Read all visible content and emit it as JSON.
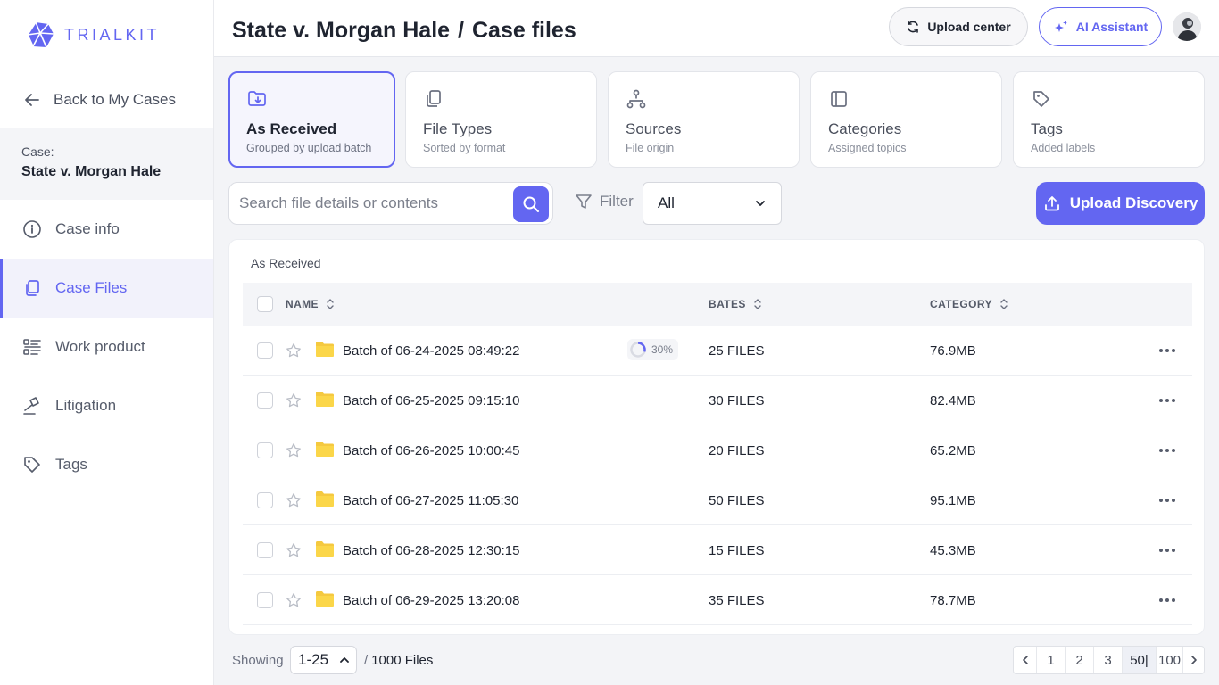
{
  "brand": {
    "name": "TRIALKIT",
    "accent": "#6366f1"
  },
  "sidebar": {
    "back_label": "Back to My Cases",
    "case_label": "Case:",
    "case_name": "State v. Morgan Hale",
    "items": [
      {
        "label": "Case info",
        "icon": "info-icon"
      },
      {
        "label": "Case Files",
        "icon": "files-icon",
        "active": true
      },
      {
        "label": "Work product",
        "icon": "list-icon"
      },
      {
        "label": "Litigation",
        "icon": "gavel-icon"
      },
      {
        "label": "Tags",
        "icon": "tag-icon"
      }
    ]
  },
  "header": {
    "case_title": "State v. Morgan Hale",
    "separator": "/",
    "page_title": "Case files",
    "upload_center_label": "Upload center",
    "ai_label": "AI Assistant"
  },
  "views": [
    {
      "title": "As Received",
      "subtitle": "Grouped by upload batch",
      "icon": "folder-download-icon",
      "active": true
    },
    {
      "title": "File Types",
      "subtitle": "Sorted by format",
      "icon": "copy-icon"
    },
    {
      "title": "Sources",
      "subtitle": "File origin",
      "icon": "sitemap-icon"
    },
    {
      "title": "Categories",
      "subtitle": "Assigned topics",
      "icon": "panel-icon"
    },
    {
      "title": "Tags",
      "subtitle": "Added labels",
      "icon": "tag-icon"
    }
  ],
  "toolbar": {
    "search_placeholder": "Search file details or contents",
    "filter_label": "Filter",
    "filter_value": "All",
    "upload_label": "Upload Discovery"
  },
  "table": {
    "title": "As Received",
    "columns": {
      "name": "NAME",
      "bates": "BATES",
      "category": "CATEGORY"
    },
    "rows": [
      {
        "name": "Batch of 06-24-2025 08:49:22",
        "bates": "25 FILES",
        "category": "76.9MB",
        "progress": "30%"
      },
      {
        "name": "Batch of 06-25-2025 09:15:10",
        "bates": "30 FILES",
        "category": "82.4MB"
      },
      {
        "name": "Batch of 06-26-2025 10:00:45",
        "bates": "20 FILES",
        "category": "65.2MB"
      },
      {
        "name": "Batch of 06-27-2025 11:05:30",
        "bates": "50 FILES",
        "category": "95.1MB"
      },
      {
        "name": "Batch of 06-28-2025 12:30:15",
        "bates": "15 FILES",
        "category": "45.3MB"
      },
      {
        "name": "Batch of 06-29-2025 13:20:08",
        "bates": "35 FILES",
        "category": "78.7MB"
      }
    ]
  },
  "footer": {
    "showing_label": "Showing",
    "range": "1-25",
    "slash": "/",
    "total": "1000 Files",
    "pages": [
      "1",
      "2",
      "3",
      "50|",
      "100"
    ],
    "active_page": "50|"
  }
}
